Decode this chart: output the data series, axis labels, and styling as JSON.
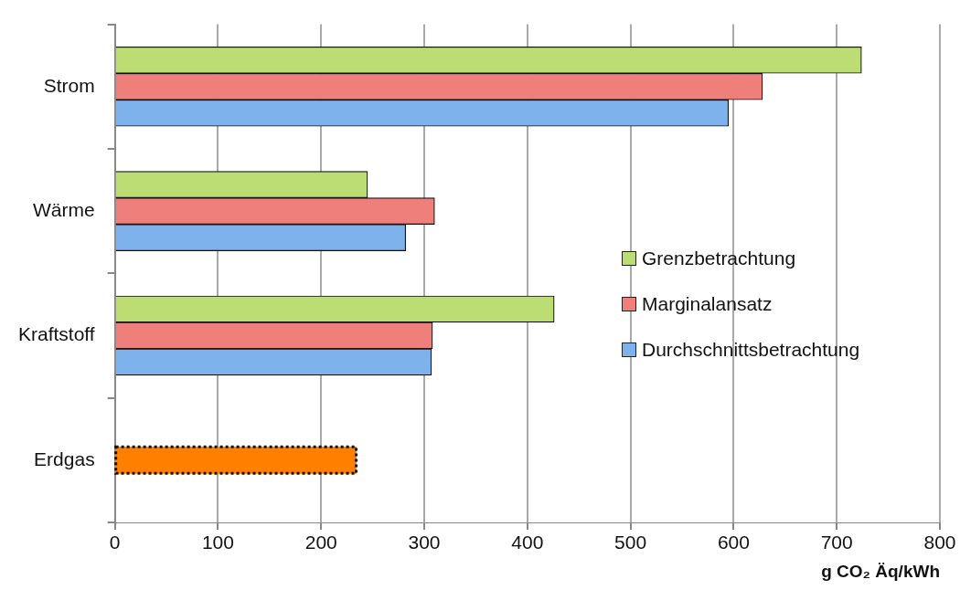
{
  "chart_data": {
    "type": "bar",
    "orientation": "horizontal",
    "xlabel": "g CO₂ Äq/kWh",
    "categories": [
      "Strom",
      "Wärme",
      "Kraftstoff",
      "Erdgas"
    ],
    "series": [
      {
        "name": "Grenzbetrachtung",
        "color": "#bcdc74",
        "values": [
          724,
          245,
          426,
          null
        ]
      },
      {
        "name": "Marginalansatz",
        "color": "#ee7f7a",
        "values": [
          628,
          310,
          308,
          null
        ]
      },
      {
        "name": "Durchschnittsbetrachtung",
        "color": "#7eb2ec",
        "values": [
          595,
          282,
          307,
          null
        ]
      },
      {
        "color": "#ff7f00",
        "line_style": "dotted",
        "values": [
          null,
          null,
          null,
          234
        ]
      }
    ],
    "xlim": [
      0,
      800
    ],
    "xticks": [
      0,
      100,
      200,
      300,
      400,
      500,
      600,
      700,
      800
    ],
    "grid": "x",
    "legend": "right"
  }
}
